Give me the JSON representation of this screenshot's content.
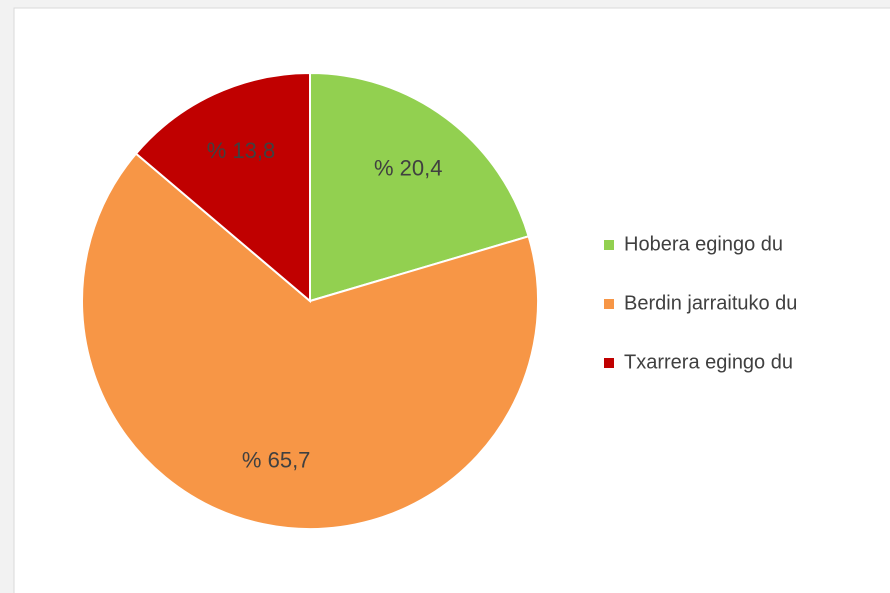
{
  "chart_data": {
    "type": "pie",
    "categories": [
      "Hobera egingo du",
      "Berdin jarraituko du",
      "Txarrera egingo du"
    ],
    "values": [
      20.4,
      65.7,
      13.8
    ],
    "value_labels": [
      "% 20,4",
      "% 65,7",
      "% 13,8"
    ],
    "colors": [
      "#92d050",
      "#f79646",
      "#c00000"
    ],
    "legend": "right"
  }
}
